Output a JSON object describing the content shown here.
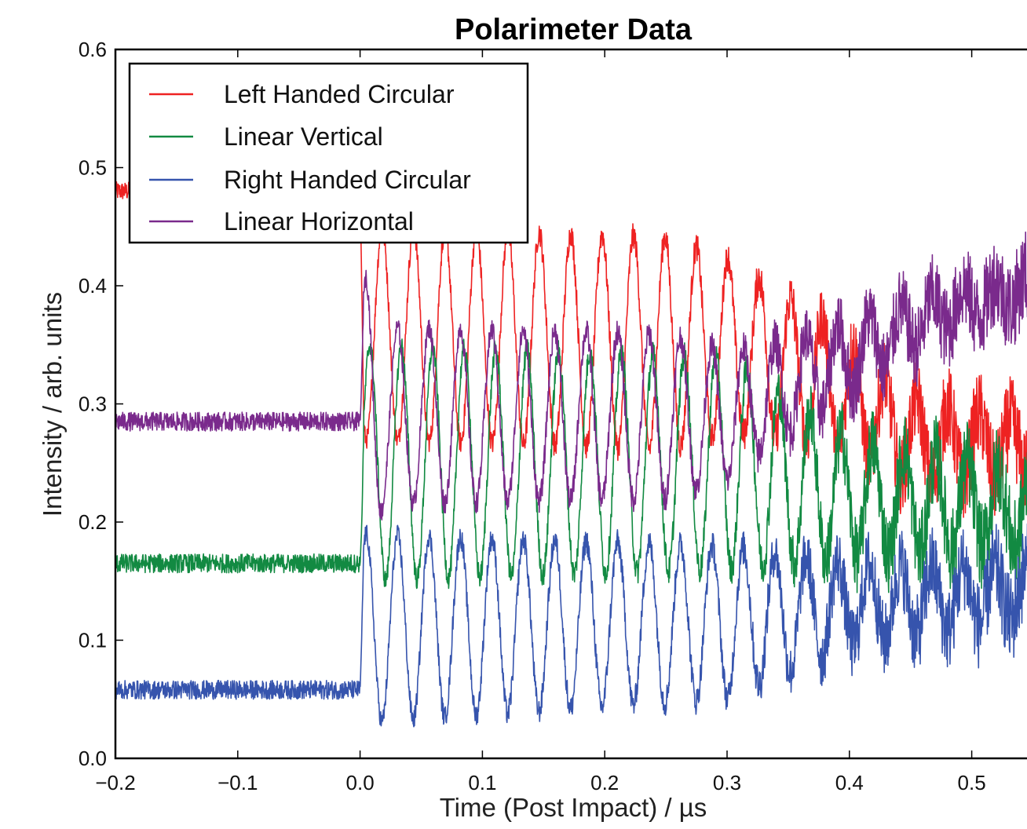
{
  "chart_data": {
    "type": "line",
    "title": "Polarimeter Data",
    "xlabel": "Time (Post Impact) / µs",
    "ylabel": "Intensity / arb. units",
    "xlim": [
      -0.2,
      0.6
    ],
    "ylim": [
      0.0,
      0.6
    ],
    "xticks": [
      "−0.2",
      "−0.1",
      "0.0",
      "0.1",
      "0.2",
      "0.3",
      "0.4",
      "0.5"
    ],
    "xtick_values": [
      -0.2,
      -0.1,
      0.0,
      0.1,
      0.2,
      0.3,
      0.4,
      0.5
    ],
    "yticks": [
      "0.0",
      "0.1",
      "0.2",
      "0.3",
      "0.4",
      "0.5",
      "0.6"
    ],
    "ytick_values": [
      0.0,
      0.1,
      0.2,
      0.3,
      0.4,
      0.5,
      0.6
    ],
    "grid": false,
    "legend_position": "top-left",
    "oscillation_period_us": 0.0257,
    "series": [
      {
        "name": "Left Handed Circular",
        "color": "#ee2222",
        "pre_impact_level": 0.48,
        "pre_impact_noise": 0.008,
        "first_peak_t": 0.018,
        "mean": [
          [
            0,
            0.36
          ],
          [
            0.3,
            0.35
          ],
          [
            0.38,
            0.32
          ],
          [
            0.45,
            0.27
          ],
          [
            0.55,
            0.26
          ]
        ],
        "amplitude": [
          [
            0,
            0.09
          ],
          [
            0.25,
            0.09
          ],
          [
            0.35,
            0.06
          ],
          [
            0.42,
            0.04
          ],
          [
            0.55,
            0.02
          ]
        ],
        "noise": [
          [
            0,
            0.008
          ],
          [
            0.3,
            0.012
          ],
          [
            0.4,
            0.03
          ],
          [
            0.55,
            0.04
          ]
        ]
      },
      {
        "name": "Linear Vertical",
        "color": "#128a42",
        "pre_impact_level": 0.165,
        "pre_impact_noise": 0.008,
        "first_peak_t": 0.008,
        "mean": [
          [
            0,
            0.25
          ],
          [
            0.3,
            0.25
          ],
          [
            0.4,
            0.22
          ],
          [
            0.55,
            0.21
          ]
        ],
        "amplitude": [
          [
            0,
            0.1
          ],
          [
            0.3,
            0.09
          ],
          [
            0.4,
            0.05
          ],
          [
            0.55,
            0.03
          ]
        ],
        "noise": [
          [
            0,
            0.008
          ],
          [
            0.3,
            0.012
          ],
          [
            0.4,
            0.03
          ],
          [
            0.55,
            0.04
          ]
        ]
      },
      {
        "name": "Right Handed Circular",
        "color": "#3654ad",
        "pre_impact_level": 0.058,
        "pre_impact_noise": 0.008,
        "first_peak_t": 0.005,
        "mean": [
          [
            0,
            0.11
          ],
          [
            0.3,
            0.115
          ],
          [
            0.4,
            0.13
          ],
          [
            0.55,
            0.14
          ]
        ],
        "amplitude": [
          [
            0,
            0.08
          ],
          [
            0.3,
            0.065
          ],
          [
            0.4,
            0.035
          ],
          [
            0.55,
            0.02
          ]
        ],
        "noise": [
          [
            0,
            0.008
          ],
          [
            0.3,
            0.012
          ],
          [
            0.4,
            0.03
          ],
          [
            0.55,
            0.04
          ]
        ]
      },
      {
        "name": "Linear Horizontal",
        "color": "#7a2a8c",
        "pre_impact_level": 0.285,
        "pre_impact_noise": 0.008,
        "first_peak_t": 0.005,
        "mean": [
          [
            0,
            0.29
          ],
          [
            0.3,
            0.29
          ],
          [
            0.36,
            0.32
          ],
          [
            0.42,
            0.35
          ],
          [
            0.48,
            0.38
          ],
          [
            0.55,
            0.4
          ]
        ],
        "amplitude": [
          [
            0,
            0.13
          ],
          [
            0.02,
            0.075
          ],
          [
            0.25,
            0.07
          ],
          [
            0.35,
            0.04
          ],
          [
            0.45,
            0.02
          ],
          [
            0.55,
            0.01
          ]
        ],
        "noise": [
          [
            0,
            0.008
          ],
          [
            0.3,
            0.012
          ],
          [
            0.4,
            0.03
          ],
          [
            0.55,
            0.04
          ]
        ]
      }
    ]
  }
}
